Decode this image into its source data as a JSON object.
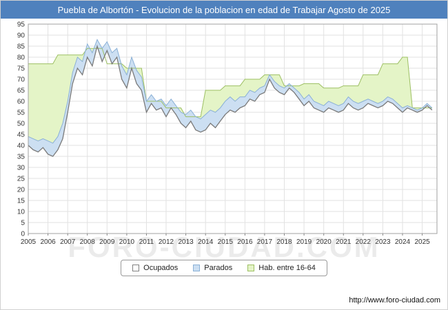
{
  "title_bar": {
    "title": "Puebla de Albortón - Evolucion de la poblacion en edad de Trabajar Agosto de 2025",
    "bg": "#4f81bd"
  },
  "watermark": "FORO-CIUDAD.COM",
  "legend": [
    {
      "label": "Ocupados",
      "fill": "#ffffff",
      "stroke": "#808080"
    },
    {
      "label": "Parados",
      "fill": "#ccdff2",
      "stroke": "#8ab0d6"
    },
    {
      "label": "Hab. entre 16-64",
      "fill": "#e4f4c7",
      "stroke": "#9cbf62"
    }
  ],
  "footer": {
    "url": "http://www.foro-ciudad.com"
  },
  "chart_data": {
    "type": "area",
    "title": "Puebla de Albortón - Evolucion de la poblacion en edad de Trabajar Agosto de 2025",
    "xlabel": "",
    "ylabel": "",
    "xlim": [
      2005,
      2025.75
    ],
    "ylim": [
      0,
      95
    ],
    "y_tick_step": 5,
    "x_start": 2005,
    "x_step": 0.25,
    "x_ticks": [
      2005,
      2006,
      2007,
      2008,
      2009,
      2010,
      2011,
      2012,
      2013,
      2014,
      2015,
      2016,
      2017,
      2018,
      2019,
      2020,
      2021,
      2022,
      2023,
      2024,
      2025
    ],
    "note": "Quarterly estimates read from the plot. 'Parados' values are the upper edge of the stacked blue band (Ocupados + Parados). 'Hab. entre 16-64' is the stepped green envelope.",
    "series": [
      {
        "name": "Ocupados",
        "values": [
          40,
          38,
          37,
          39,
          36,
          35,
          38,
          43,
          55,
          68,
          75,
          72,
          80,
          76,
          85,
          78,
          83,
          77,
          80,
          70,
          66,
          75,
          68,
          65,
          55,
          59,
          56,
          57,
          53,
          57,
          54,
          50,
          48,
          51,
          47,
          46,
          47,
          50,
          48,
          51,
          54,
          56,
          55,
          57,
          58,
          61,
          60,
          63,
          64,
          70,
          66,
          64,
          63,
          66,
          64,
          61,
          58,
          60,
          57,
          56,
          55,
          57,
          56,
          55,
          56,
          59,
          57,
          56,
          57,
          59,
          58,
          57,
          58,
          60,
          59,
          57,
          55,
          57,
          56,
          55,
          56,
          58,
          56
        ]
      },
      {
        "name": "Parados",
        "values": [
          44,
          43,
          42,
          43,
          42,
          41,
          44,
          50,
          60,
          73,
          80,
          78,
          86,
          82,
          88,
          84,
          87,
          82,
          84,
          76,
          72,
          80,
          74,
          71,
          60,
          63,
          60,
          61,
          58,
          61,
          58,
          55,
          54,
          56,
          53,
          52,
          54,
          56,
          55,
          57,
          60,
          62,
          60,
          62,
          62,
          65,
          64,
          66,
          67,
          72,
          69,
          67,
          66,
          68,
          66,
          64,
          61,
          63,
          60,
          59,
          58,
          60,
          59,
          58,
          59,
          62,
          60,
          59,
          60,
          61,
          60,
          59,
          60,
          62,
          61,
          59,
          57,
          58,
          57,
          56,
          57,
          59,
          57
        ]
      },
      {
        "name": "Hab. entre 16-64",
        "values": [
          77,
          77,
          77,
          77,
          77,
          77,
          81,
          81,
          81,
          81,
          81,
          81,
          84,
          84,
          84,
          84,
          77,
          77,
          77,
          77,
          75,
          75,
          75,
          75,
          60,
          60,
          60,
          60,
          57,
          57,
          57,
          57,
          53,
          53,
          53,
          53,
          65,
          65,
          65,
          65,
          67,
          67,
          67,
          67,
          70,
          70,
          70,
          70,
          72,
          72,
          72,
          72,
          67,
          67,
          67,
          67,
          68,
          68,
          68,
          68,
          66,
          66,
          66,
          66,
          67,
          67,
          67,
          67,
          72,
          72,
          72,
          72,
          77,
          77,
          77,
          77,
          80,
          80,
          57,
          57,
          57,
          57,
          57
        ]
      }
    ],
    "colors": {
      "grid": "#e2e2e2",
      "border": "#a0a0a0",
      "ocupados_stroke": "#7a7a7a",
      "parados_fill": "#ccdff2",
      "parados_stroke": "#8ab0d6",
      "hab_fill": "#e4f4c7",
      "hab_stroke": "#9cbf62"
    },
    "legend_position": "bottom-center",
    "grid": true
  }
}
